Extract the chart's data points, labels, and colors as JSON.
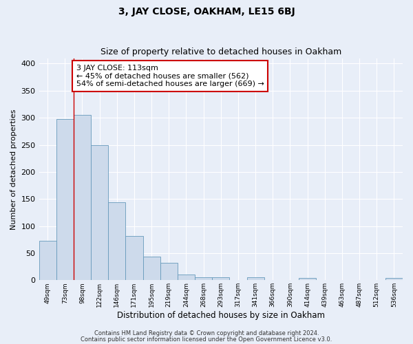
{
  "title": "3, JAY CLOSE, OAKHAM, LE15 6BJ",
  "subtitle": "Size of property relative to detached houses in Oakham",
  "xlabel": "Distribution of detached houses by size in Oakham",
  "ylabel": "Number of detached properties",
  "bar_labels": [
    "49sqm",
    "73sqm",
    "98sqm",
    "122sqm",
    "146sqm",
    "171sqm",
    "195sqm",
    "219sqm",
    "244sqm",
    "268sqm",
    "293sqm",
    "317sqm",
    "341sqm",
    "366sqm",
    "390sqm",
    "414sqm",
    "439sqm",
    "463sqm",
    "487sqm",
    "512sqm",
    "536sqm"
  ],
  "bar_heights": [
    73,
    298,
    305,
    249,
    144,
    82,
    44,
    32,
    10,
    6,
    5,
    0,
    6,
    0,
    0,
    4,
    0,
    0,
    0,
    0,
    4
  ],
  "bar_color": "#cddaeb",
  "bar_edge_color": "#6699bb",
  "ylim": [
    0,
    410
  ],
  "yticks": [
    0,
    50,
    100,
    150,
    200,
    250,
    300,
    350,
    400
  ],
  "vline_x": 2.0,
  "vline_color": "#cc0000",
  "annotation_text": "3 JAY CLOSE: 113sqm\n← 45% of detached houses are smaller (562)\n54% of semi-detached houses are larger (669) →",
  "annotation_box_edge": "#cc0000",
  "footer_line1": "Contains HM Land Registry data © Crown copyright and database right 2024.",
  "footer_line2": "Contains public sector information licensed under the Open Government Licence v3.0.",
  "background_color": "#e8eef8",
  "plot_background": "#e8eef8",
  "grid_color": "#ffffff",
  "title_fontsize": 10,
  "subtitle_fontsize": 9,
  "ylabel_fontsize": 8,
  "xlabel_fontsize": 8.5,
  "ytick_fontsize": 8,
  "xtick_fontsize": 6.5,
  "annot_fontsize": 8,
  "footer_fontsize": 6
}
